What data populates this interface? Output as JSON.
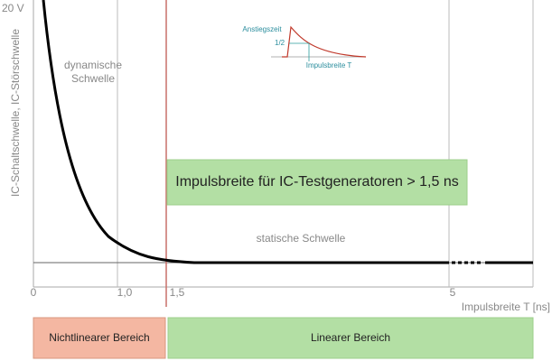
{
  "axis": {
    "y_max_label": "20 V",
    "y_title": "IC-Schaltschwelle, IC-Störschwelle",
    "x_title": "Impulsbreite T [ns]",
    "x_ticks": [
      "0",
      "1,0",
      "1,5",
      "5"
    ]
  },
  "labels": {
    "dynamic_line1": "dynamische",
    "dynamic_line2": "Schwelle",
    "static": "statische Schwelle"
  },
  "inset": {
    "rise_time": "Anstiegszeit",
    "half": "1/2",
    "pulse_width": "Impulsbreite T"
  },
  "callout": "Impulsbreite für IC-Testgeneratoren > 1,5 ns",
  "regions": {
    "nonlinear": "Nichtlinearer Bereich",
    "linear": "Linearer Bereich"
  }
}
